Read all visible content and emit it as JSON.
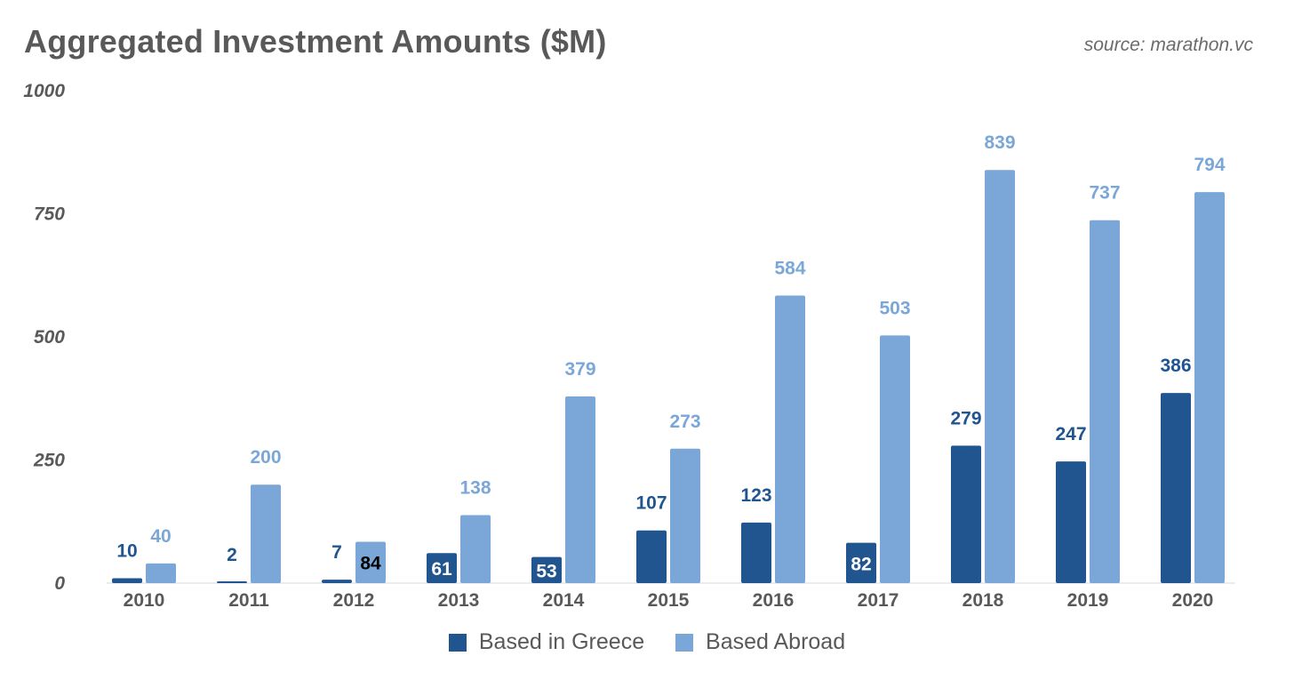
{
  "title": "Aggregated Investment Amounts ($M)",
  "source": "source: marathon.vc",
  "colors": {
    "greece": "#215590",
    "abroad": "#7aa7d8",
    "text": "#595959"
  },
  "chart_data": {
    "type": "bar",
    "title": "Aggregated Investment Amounts ($M)",
    "categories": [
      "2010",
      "2011",
      "2012",
      "2013",
      "2014",
      "2015",
      "2016",
      "2017",
      "2018",
      "2019",
      "2020"
    ],
    "series": [
      {
        "name": "Based in Greece",
        "values": [
          10,
          2,
          7,
          61,
          53,
          107,
          123,
          82,
          279,
          247,
          386
        ]
      },
      {
        "name": "Based Abroad",
        "values": [
          40,
          200,
          84,
          138,
          379,
          273,
          584,
          503,
          839,
          737,
          794
        ]
      }
    ],
    "ylim": [
      0,
      1000
    ],
    "yticks": [
      "0",
      "250",
      "500",
      "750",
      "1000"
    ],
    "xlabel": "",
    "ylabel": "",
    "grid": false,
    "legend_position": "bottom-center"
  },
  "legend": [
    {
      "label": "Based in Greece"
    },
    {
      "label": "Based Abroad"
    }
  ]
}
